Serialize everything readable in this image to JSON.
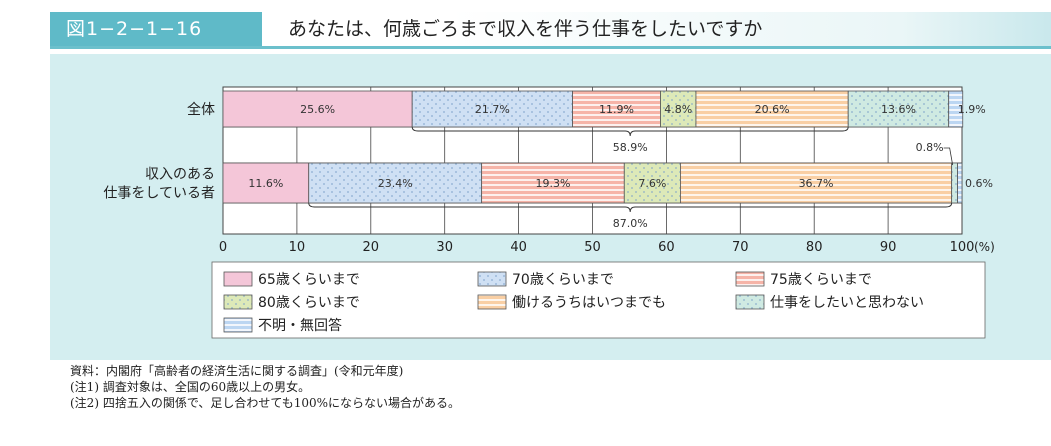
{
  "figure": {
    "label": "図1−2−1−16",
    "title": "あなたは、何歳ごろまで収入を伴う仕事をしたいですか"
  },
  "colors": {
    "panel_bg": "#d4eef0",
    "accent": "#5fbac8"
  },
  "chart_data": {
    "type": "bar",
    "orientation": "horizontal",
    "stacked": true,
    "x_unit": "(%)",
    "xlim": [
      0,
      100
    ],
    "x_ticks": [
      0,
      10,
      20,
      30,
      40,
      50,
      60,
      70,
      80,
      90,
      100
    ],
    "grid": true,
    "legend_position": "bottom",
    "categories": [
      {
        "label_lines": [
          "全体"
        ],
        "bracket_total": "58.9%"
      },
      {
        "label_lines": [
          "収入のある",
          "仕事をしている者"
        ],
        "bracket_total": "87.0%"
      }
    ],
    "series": [
      {
        "name": "65歳くらいまで",
        "color": "#f4c6d8",
        "pattern": "solid",
        "values": [
          25.6,
          11.6
        ]
      },
      {
        "name": "70歳くらいまで",
        "color": "#cfe0f4",
        "pattern": "dots",
        "values": [
          21.7,
          23.4
        ]
      },
      {
        "name": "75歳くらいまで",
        "color": "#f6b4a8",
        "pattern": "stripes",
        "values": [
          11.9,
          19.3
        ]
      },
      {
        "name": "80歳くらいまで",
        "color": "#dde9b8",
        "pattern": "dots",
        "values": [
          4.8,
          7.6
        ]
      },
      {
        "name": "働けるうちはいつまでも",
        "color": "#f9cfa4",
        "pattern": "stripes",
        "values": [
          20.6,
          36.7
        ]
      },
      {
        "name": "仕事をしたいと思わない",
        "color": "#cfeae2",
        "pattern": "dots",
        "values": [
          13.6,
          0.8
        ]
      },
      {
        "name": "不明・無回答",
        "color": "#bcd6f2",
        "pattern": "stripes",
        "values": [
          1.9,
          0.6
        ]
      }
    ],
    "data_labels": [
      [
        "25.6%",
        "21.7%",
        "11.9%",
        "4.8%",
        "20.6%",
        "13.6%",
        "1.9%"
      ],
      [
        "11.6%",
        "23.4%",
        "19.3%",
        "7.6%",
        "36.7%",
        "0.8%",
        "0.6%"
      ]
    ]
  },
  "notes": [
    "資料：内閣府「高齢者の経済生活に関する調査」(令和元年度)",
    "(注1) 調査対象は、全国の60歳以上の男女。",
    "(注2) 四捨五入の関係で、足し合わせても100%にならない場合がある。"
  ]
}
